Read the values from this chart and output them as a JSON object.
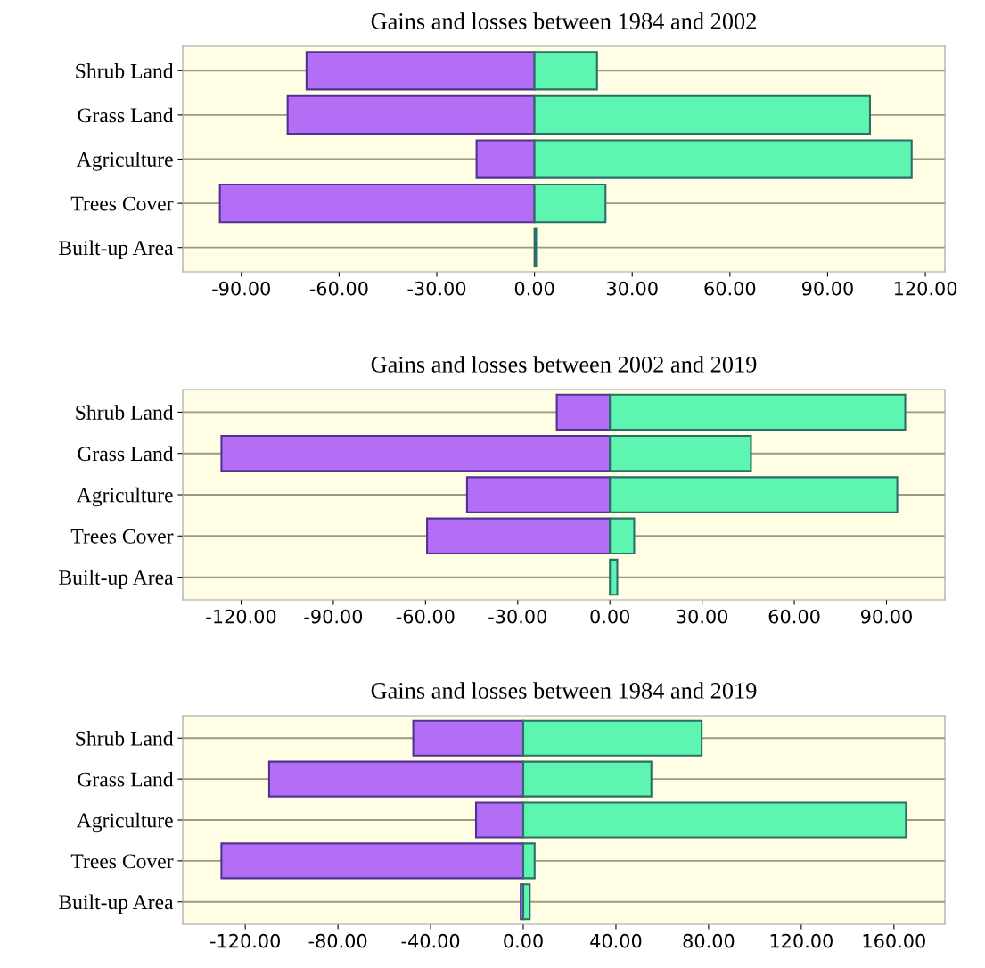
{
  "chart_data": [
    {
      "type": "bar",
      "title": "Gains and losses between 1984 and 2002",
      "orientation": "horizontal",
      "stacked": true,
      "grid": "y",
      "categories": [
        "Shrub Land",
        "Grass Land",
        "Agriculture",
        "Trees Cover",
        "Built-up Area"
      ],
      "series": [
        {
          "color": "#b36ef5",
          "values": [
            -70.0,
            -75.8,
            -17.8,
            -96.6,
            null
          ]
        },
        {
          "color": "#5ef5b0",
          "values": [
            19.2,
            103.0,
            115.8,
            21.8,
            0.5
          ]
        }
      ],
      "xlim": [
        -108,
        126
      ],
      "xticks": [
        {
          "value": -90,
          "label": "-90.00"
        },
        {
          "value": -60,
          "label": "-60.00"
        },
        {
          "value": -30,
          "label": "-30.00"
        },
        {
          "value": 0,
          "label": "0.00"
        },
        {
          "value": 30,
          "label": "30.00"
        },
        {
          "value": 60,
          "label": "60.00"
        },
        {
          "value": 90,
          "label": "90.00"
        },
        {
          "value": 120,
          "label": "120.00"
        }
      ]
    },
    {
      "type": "bar",
      "title": "Gains and losses between 2002 and 2019",
      "orientation": "horizontal",
      "stacked": true,
      "grid": "y",
      "categories": [
        "Shrub Land",
        "Grass Land",
        "Agriculture",
        "Trees Cover",
        "Built-up Area"
      ],
      "series": [
        {
          "color": "#b36ef5",
          "values": [
            -17.3,
            -126.4,
            -46.5,
            -59.5,
            null
          ]
        },
        {
          "color": "#5ef5b0",
          "values": [
            96.1,
            45.9,
            93.5,
            7.9,
            2.4
          ]
        }
      ],
      "xlim": [
        -139,
        109
      ],
      "xticks": [
        {
          "value": -120,
          "label": "-120.00"
        },
        {
          "value": -90,
          "label": "-90.00"
        },
        {
          "value": -60,
          "label": "-60.00"
        },
        {
          "value": -30,
          "label": "-30.00"
        },
        {
          "value": 0,
          "label": "0.00"
        },
        {
          "value": 30,
          "label": "30.00"
        },
        {
          "value": 60,
          "label": "60.00"
        },
        {
          "value": 90,
          "label": "90.00"
        }
      ]
    },
    {
      "type": "bar",
      "title": "Gains and losses between 1984 and 2019",
      "orientation": "horizontal",
      "stacked": true,
      "grid": "y",
      "categories": [
        "Shrub Land",
        "Grass Land",
        "Agriculture",
        "Trees Cover",
        "Built-up Area"
      ],
      "series": [
        {
          "color": "#b36ef5",
          "values": [
            -47.5,
            -109.7,
            -20.4,
            -130.3,
            -1.1
          ]
        },
        {
          "color": "#5ef5b0",
          "values": [
            77.0,
            55.3,
            165.2,
            4.9,
            2.8
          ]
        }
      ],
      "xlim": [
        -147,
        182
      ],
      "xticks": [
        {
          "value": -120,
          "label": "-120.00"
        },
        {
          "value": -80,
          "label": "-80.00"
        },
        {
          "value": -40,
          "label": "-40.00"
        },
        {
          "value": 0,
          "label": "0.00"
        },
        {
          "value": 40,
          "label": "40.00"
        },
        {
          "value": 80,
          "label": "80.00"
        },
        {
          "value": 120,
          "label": "120.00"
        },
        {
          "value": 160,
          "label": "160.00"
        }
      ]
    }
  ]
}
